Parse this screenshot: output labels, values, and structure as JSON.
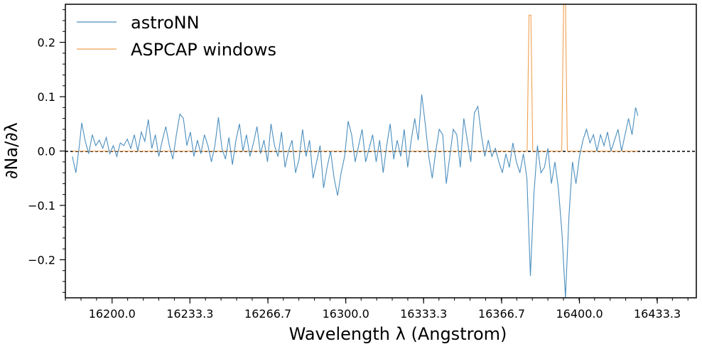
{
  "chart_data": {
    "type": "line",
    "xlabel": "Wavelength λ (Angstrom)",
    "ylabel": "∂Na/∂λ",
    "xlim": [
      16180,
      16450
    ],
    "ylim": [
      -0.27,
      0.27
    ],
    "x_ticks": [
      16200.0,
      16233.3,
      16266.7,
      16300.0,
      16333.3,
      16366.7,
      16400.0,
      16433.3
    ],
    "x_tick_labels": [
      "16200.0",
      "16233.3",
      "16266.7",
      "16300.0",
      "16333.3",
      "16366.7",
      "16400.0",
      "16433.3"
    ],
    "y_ticks": [
      -0.2,
      -0.1,
      0.0,
      0.1,
      0.2
    ],
    "y_tick_labels": [
      "−0.2",
      "−0.1",
      "0.0",
      "0.1",
      "0.2"
    ],
    "zero_line": true,
    "grid": false,
    "legend_position": "top-left",
    "series": [
      {
        "name": "astroNN",
        "color": "#4c8fbf",
        "points": [
          [
            16183.0,
            -0.01
          ],
          [
            16184.5,
            -0.04
          ],
          [
            16186.0,
            0.01
          ],
          [
            16187.0,
            0.052
          ],
          [
            16188.5,
            0.018
          ],
          [
            16190.0,
            -0.005
          ],
          [
            16191.5,
            0.03
          ],
          [
            16193.0,
            0.01
          ],
          [
            16194.5,
            0.02
          ],
          [
            16196.0,
            0.005
          ],
          [
            16197.5,
            0.025
          ],
          [
            16199.0,
            -0.005
          ],
          [
            16200.5,
            0.01
          ],
          [
            16202.0,
            -0.01
          ],
          [
            16203.5,
            0.015
          ],
          [
            16205.0,
            0.01
          ],
          [
            16206.5,
            0.022
          ],
          [
            16208.0,
            0.005
          ],
          [
            16209.5,
            0.03
          ],
          [
            16211.0,
            0.0
          ],
          [
            16212.5,
            0.035
          ],
          [
            16214.0,
            0.018
          ],
          [
            16215.5,
            0.058
          ],
          [
            16217.0,
            0.005
          ],
          [
            16218.5,
            0.03
          ],
          [
            16220.0,
            -0.01
          ],
          [
            16221.5,
            0.02
          ],
          [
            16223.0,
            0.045
          ],
          [
            16224.5,
            0.01
          ],
          [
            16226.0,
            -0.015
          ],
          [
            16227.5,
            0.03
          ],
          [
            16229.0,
            0.068
          ],
          [
            16230.5,
            0.06
          ],
          [
            16232.0,
            0.01
          ],
          [
            16233.5,
            0.035
          ],
          [
            16235.0,
            -0.01
          ],
          [
            16236.5,
            0.02
          ],
          [
            16238.0,
            -0.005
          ],
          [
            16239.5,
            0.03
          ],
          [
            16241.0,
            0.01
          ],
          [
            16242.5,
            -0.02
          ],
          [
            16244.0,
            0.01
          ],
          [
            16245.5,
            0.062
          ],
          [
            16247.0,
            0.005
          ],
          [
            16248.5,
            -0.015
          ],
          [
            16250.0,
            0.025
          ],
          [
            16251.5,
            -0.025
          ],
          [
            16253.0,
            0.02
          ],
          [
            16254.5,
            0.05
          ],
          [
            16256.0,
            0.0
          ],
          [
            16257.5,
            0.03
          ],
          [
            16259.0,
            -0.01
          ],
          [
            16260.5,
            0.015
          ],
          [
            16262.0,
            0.045
          ],
          [
            16263.5,
            -0.005
          ],
          [
            16265.0,
            0.02
          ],
          [
            16266.5,
            -0.02
          ],
          [
            16268.0,
            0.05
          ],
          [
            16269.5,
            0.01
          ],
          [
            16271.0,
            -0.01
          ],
          [
            16272.5,
            0.035
          ],
          [
            16274.0,
            -0.03
          ],
          [
            16275.5,
            0.0
          ],
          [
            16277.0,
            0.02
          ],
          [
            16278.5,
            -0.04
          ],
          [
            16280.0,
            -0.015
          ],
          [
            16281.5,
            0.04
          ],
          [
            16283.0,
            -0.01
          ],
          [
            16284.5,
            0.02
          ],
          [
            16286.0,
            -0.05
          ],
          [
            16287.5,
            -0.02
          ],
          [
            16289.0,
            0.01
          ],
          [
            16290.5,
            -0.068
          ],
          [
            16292.0,
            -0.03
          ],
          [
            16293.5,
            0.0
          ],
          [
            16295.0,
            -0.05
          ],
          [
            16296.5,
            -0.082
          ],
          [
            16298.0,
            -0.04
          ],
          [
            16299.5,
            -0.01
          ],
          [
            16301.0,
            0.055
          ],
          [
            16302.5,
            0.03
          ],
          [
            16304.0,
            -0.02
          ],
          [
            16305.5,
            0.01
          ],
          [
            16307.0,
            0.04
          ],
          [
            16308.5,
            -0.02
          ],
          [
            16310.0,
            0.005
          ],
          [
            16311.5,
            0.03
          ],
          [
            16313.0,
            -0.02
          ],
          [
            16314.5,
            0.02
          ],
          [
            16316.0,
            -0.04
          ],
          [
            16317.5,
            0.01
          ],
          [
            16319.0,
            0.05
          ],
          [
            16320.5,
            -0.015
          ],
          [
            16322.0,
            0.02
          ],
          [
            16323.5,
            -0.01
          ],
          [
            16325.0,
            0.04
          ],
          [
            16326.5,
            -0.03
          ],
          [
            16328.0,
            0.02
          ],
          [
            16329.5,
            0.06
          ],
          [
            16331.0,
            0.02
          ],
          [
            16332.5,
            0.104
          ],
          [
            16334.0,
            0.05
          ],
          [
            16335.5,
            -0.01
          ],
          [
            16337.0,
            -0.05
          ],
          [
            16338.5,
            0.0
          ],
          [
            16340.0,
            0.04
          ],
          [
            16341.5,
            0.03
          ],
          [
            16343.0,
            -0.06
          ],
          [
            16344.5,
            -0.01
          ],
          [
            16346.0,
            0.04
          ],
          [
            16347.5,
            0.03
          ],
          [
            16349.0,
            -0.03
          ],
          [
            16350.5,
            0.06
          ],
          [
            16352.0,
            0.02
          ],
          [
            16353.5,
            -0.02
          ],
          [
            16355.0,
            0.07
          ],
          [
            16356.5,
            0.082
          ],
          [
            16358.0,
            0.03
          ],
          [
            16359.5,
            -0.01
          ],
          [
            16361.0,
            0.02
          ],
          [
            16362.5,
            -0.01
          ],
          [
            16364.0,
            0.005
          ],
          [
            16365.5,
            -0.02
          ],
          [
            16367.0,
            -0.04
          ],
          [
            16368.5,
            -0.005
          ],
          [
            16370.0,
            -0.03
          ],
          [
            16371.5,
            0.015
          ],
          [
            16373.0,
            -0.02
          ],
          [
            16374.5,
            -0.04
          ],
          [
            16376.0,
            -0.005
          ],
          [
            16377.5,
            -0.05
          ],
          [
            16379.0,
            -0.23
          ],
          [
            16380.5,
            -0.08
          ],
          [
            16382.0,
            0.01
          ],
          [
            16383.5,
            -0.04
          ],
          [
            16385.0,
            -0.03
          ],
          [
            16386.5,
            0.005
          ],
          [
            16388.0,
            -0.06
          ],
          [
            16389.5,
            -0.02
          ],
          [
            16391.0,
            -0.07
          ],
          [
            16392.5,
            -0.15
          ],
          [
            16394.0,
            -0.27
          ],
          [
            16395.5,
            -0.12
          ],
          [
            16397.0,
            -0.02
          ],
          [
            16398.5,
            -0.06
          ],
          [
            16400.0,
            -0.01
          ],
          [
            16401.5,
            0.02
          ],
          [
            16403.0,
            0.04
          ],
          [
            16404.5,
            0.015
          ],
          [
            16406.0,
            0.03
          ],
          [
            16407.5,
            0.0
          ],
          [
            16409.0,
            0.03
          ],
          [
            16410.5,
            0.01
          ],
          [
            16412.0,
            0.035
          ],
          [
            16413.5,
            0.0
          ],
          [
            16415.0,
            0.02
          ],
          [
            16416.5,
            0.04
          ],
          [
            16418.0,
            0.0
          ],
          [
            16419.5,
            0.03
          ],
          [
            16421.0,
            0.06
          ],
          [
            16422.5,
            0.03
          ],
          [
            16424.0,
            0.08
          ],
          [
            16425.0,
            0.065
          ]
        ]
      },
      {
        "name": "ASPCAP windows",
        "color": "#f0a050",
        "points": [
          [
            16183.0,
            0.0
          ],
          [
            16377.6,
            0.0
          ],
          [
            16378.4,
            0.25
          ],
          [
            16379.2,
            0.25
          ],
          [
            16380.0,
            0.0
          ],
          [
            16392.4,
            0.0
          ],
          [
            16393.2,
            0.27
          ],
          [
            16394.0,
            0.27
          ],
          [
            16394.8,
            0.0
          ],
          [
            16425.0,
            0.0
          ]
        ]
      }
    ]
  }
}
